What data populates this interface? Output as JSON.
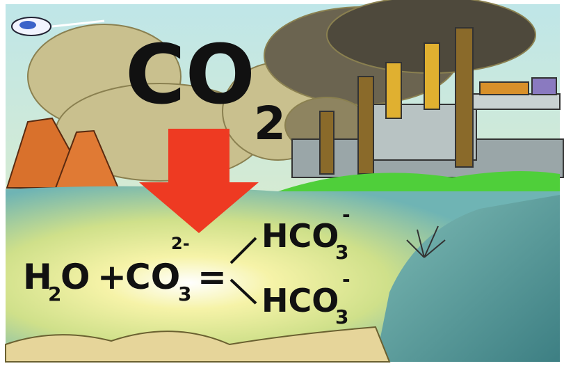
{
  "headline": {
    "formula": "CO",
    "subscript": "2"
  },
  "equation": {
    "reactant_1": {
      "base": "H",
      "subscript": "2",
      "rest": "O"
    },
    "plus": "+",
    "reactant_2": {
      "base": "CO",
      "subscript": "3",
      "charge": "2-"
    },
    "equals": "=",
    "products": [
      {
        "base": "HCO",
        "subscript": "3",
        "charge": "-"
      },
      {
        "base": "HCO",
        "subscript": "3",
        "charge": "-"
      }
    ]
  }
}
